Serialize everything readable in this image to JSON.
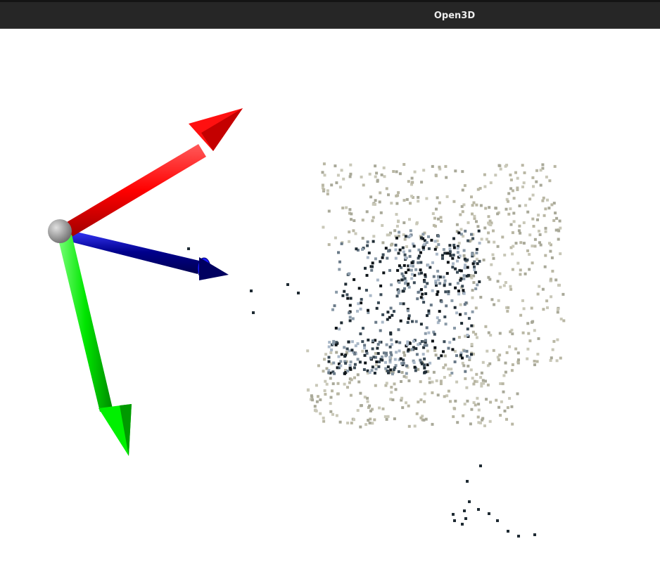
{
  "window": {
    "title": "Open3D"
  },
  "viewer": {
    "background_color": "#ffffff",
    "coordinate_frame": {
      "origin_color": "#9a9a9a",
      "axes": [
        {
          "name": "x-axis",
          "color": "#ff0000"
        },
        {
          "name": "y-axis",
          "color": "#00e600"
        },
        {
          "name": "z-axis",
          "color": "#00008c"
        }
      ]
    },
    "point_cloud": {
      "palette": [
        "#c9c8b8",
        "#b9b7a4",
        "#a9a999",
        "#8a9aa8",
        "#aab8c8",
        "#6a7a88",
        "#3c4c58",
        "#1f2b33",
        "#0e1418"
      ]
    }
  }
}
